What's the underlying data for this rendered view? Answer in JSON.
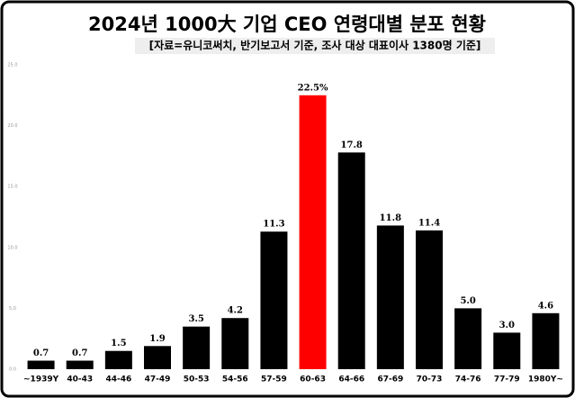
{
  "chart_data": {
    "type": "bar",
    "title": "2024년 1000大 기업 CEO 연령대별 분포 현황",
    "subtitle": "[자료=유니코써치, 반기보고서 기준, 조사 대상 대표이사 1380명 기준]",
    "categories": [
      "~1939Y",
      "40-43",
      "44-46",
      "47-49",
      "50-53",
      "54-56",
      "57-59",
      "60-63",
      "64-66",
      "67-69",
      "70-73",
      "74-76",
      "77-79",
      "1980Y~"
    ],
    "values": [
      0.7,
      0.7,
      1.5,
      1.9,
      3.5,
      4.2,
      11.3,
      22.5,
      17.8,
      11.8,
      11.4,
      5.0,
      3.0,
      4.6
    ],
    "value_labels": [
      "0.7",
      "0.7",
      "1.5",
      "1.9",
      "3.5",
      "4.2",
      "11.3",
      "22.5%",
      "17.8",
      "11.8",
      "11.4",
      "5.0",
      "3.0",
      "4.6"
    ],
    "colors": [
      "#000000",
      "#000000",
      "#000000",
      "#000000",
      "#000000",
      "#000000",
      "#000000",
      "#ff0000",
      "#000000",
      "#000000",
      "#000000",
      "#000000",
      "#000000",
      "#000000"
    ],
    "ylim": [
      0,
      25
    ],
    "yticks": [
      {
        "value": 0,
        "label": "0.0"
      },
      {
        "value": 5,
        "label": "5.0"
      },
      {
        "value": 10,
        "label": "10.0"
      },
      {
        "value": 15,
        "label": "15.0"
      },
      {
        "value": 20,
        "label": "20.0"
      },
      {
        "value": 25,
        "label": "25.0"
      }
    ],
    "grid": false
  }
}
